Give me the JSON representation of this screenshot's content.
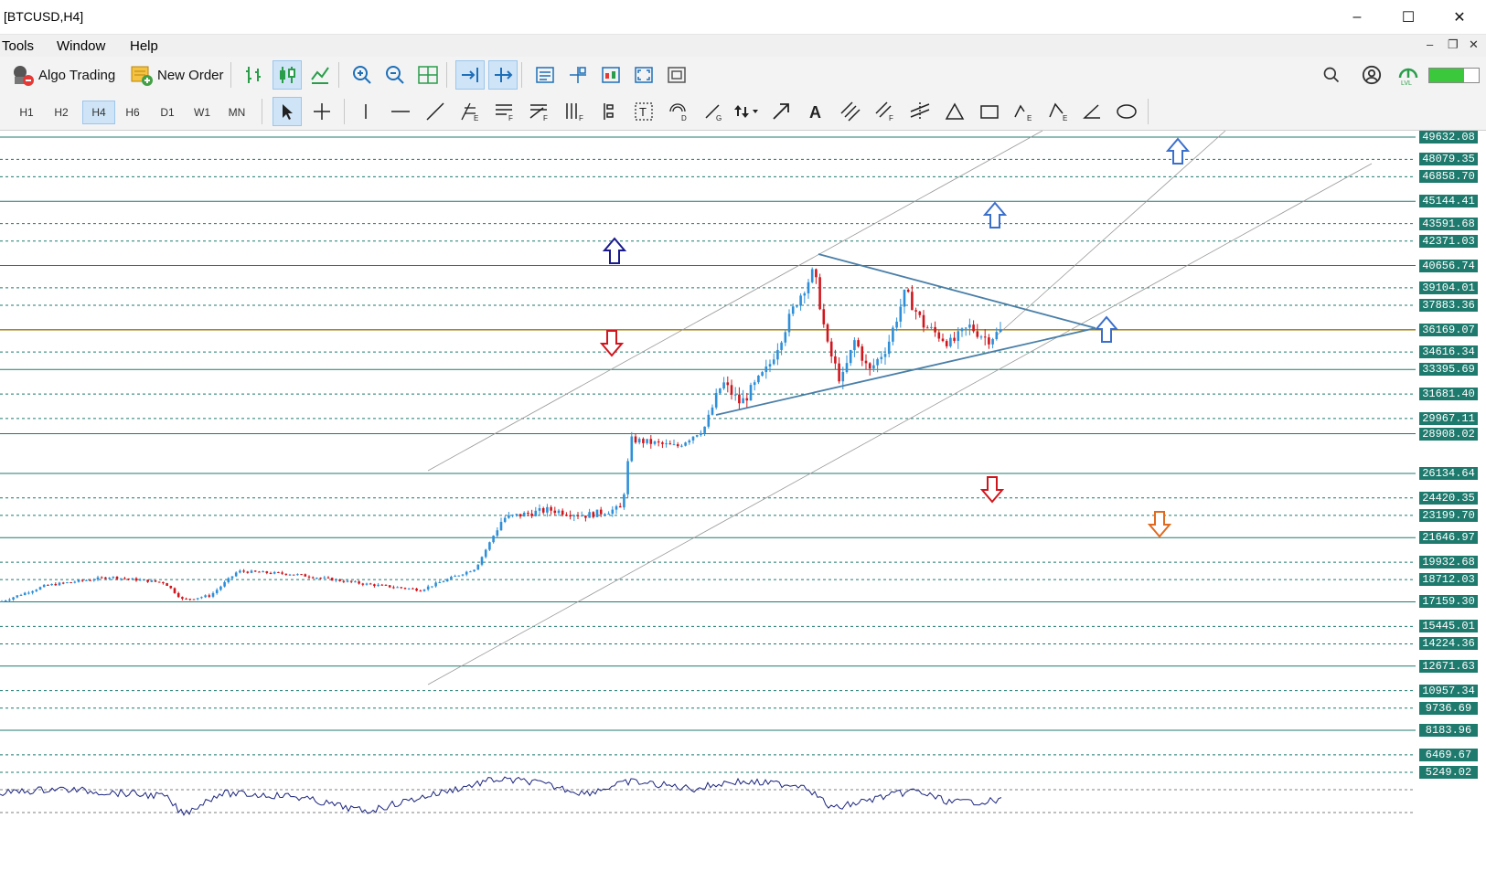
{
  "window": {
    "title": "[BTCUSD,H4]",
    "minimize": "–",
    "maximize": "☐",
    "close": "✕"
  },
  "menu": {
    "items": [
      "Tools",
      "Window",
      "Help"
    ]
  },
  "toolbar": {
    "algo_trading": "Algo Trading",
    "new_order": "New Order"
  },
  "timeframes": [
    "H1",
    "H2",
    "H4",
    "H6",
    "D1",
    "W1",
    "MN"
  ],
  "active_timeframe": "H4",
  "price_levels": [
    "49632.08",
    "48079.35",
    "46858.70",
    "45144.41",
    "43591.68",
    "42371.03",
    "40656.74",
    "39104.01",
    "37883.36",
    "36169.07",
    "34616.34",
    "33395.69",
    "31681.40",
    "29967.11",
    "28908.02",
    "26134.64",
    "24420.35",
    "23199.70",
    "21646.97",
    "19932.68",
    "18712.03",
    "17159.30",
    "15445.01",
    "14224.36",
    "12671.63",
    "10957.34",
    "9736.69",
    "8183.96",
    "6469.67",
    "5249.02"
  ],
  "colors": {
    "bull": "#2e8fd8",
    "bear": "#d0161d",
    "level_line": "#1f7a6e",
    "current_price": "#a07a00",
    "oscillator": "#1a237e",
    "arrow_up": "#3a6fcc",
    "arrow_down": "#d0161d",
    "arrow_orange": "#e06a1f"
  }
}
